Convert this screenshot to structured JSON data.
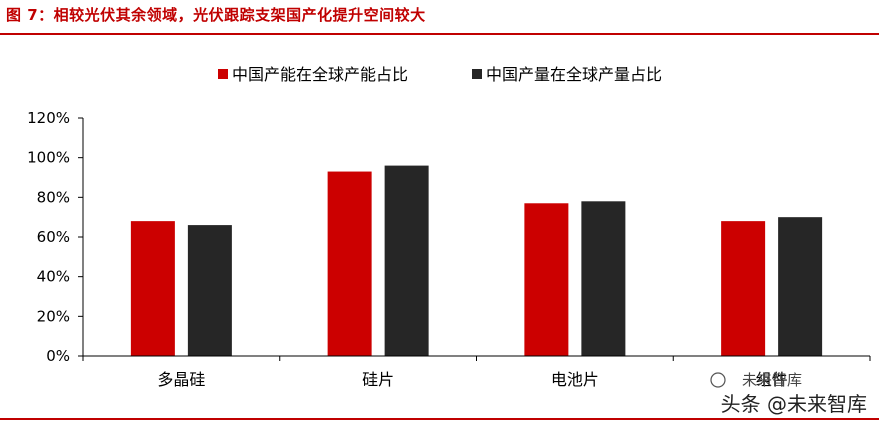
{
  "figure": {
    "title": "图 7：相较光伏其余领域，光伏跟踪支架国产化提升空间较大"
  },
  "chart_data": {
    "type": "bar",
    "categories": [
      "多晶硅",
      "硅片",
      "电池片",
      "组件"
    ],
    "series": [
      {
        "name": "中国产能在全球产能占比",
        "color": "#cc0000",
        "values": [
          68,
          93,
          77,
          68
        ]
      },
      {
        "name": "中国产量在全球产量占比",
        "color": "#262626",
        "values": [
          66,
          96,
          78,
          70
        ]
      }
    ],
    "y_ticks": [
      "0%",
      "20%",
      "40%",
      "60%",
      "80%",
      "100%",
      "120%"
    ],
    "ylim": [
      0,
      120
    ],
    "grid": false,
    "legend_position": "top-center"
  },
  "watermark": {
    "mark_text": "未来智库",
    "text": "头条 @未来智库"
  }
}
